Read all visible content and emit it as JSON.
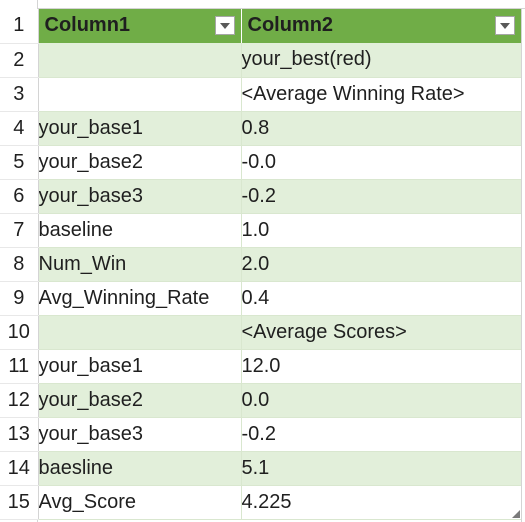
{
  "table": {
    "headers": [
      {
        "row_num": "1",
        "col1": "Column1",
        "col2": "Column2"
      }
    ],
    "rows": [
      {
        "row_num": "2",
        "col1": "",
        "col2": "your_best(red)"
      },
      {
        "row_num": "3",
        "col1": "",
        "col2": "<Average Winning Rate>"
      },
      {
        "row_num": "4",
        "col1": "your_base1",
        "col2": "0.8"
      },
      {
        "row_num": "5",
        "col1": "your_base2",
        "col2": "-0.0"
      },
      {
        "row_num": "6",
        "col1": "your_base3",
        "col2": "-0.2"
      },
      {
        "row_num": "7",
        "col1": "baseline",
        "col2": "1.0"
      },
      {
        "row_num": "8",
        "col1": "Num_Win",
        "col2": "2.0"
      },
      {
        "row_num": "9",
        "col1": "Avg_Winning_Rate",
        "col2": "0.4"
      },
      {
        "row_num": "10",
        "col1": "",
        "col2": "<Average Scores>"
      },
      {
        "row_num": "11",
        "col1": "your_base1",
        "col2": "12.0"
      },
      {
        "row_num": "12",
        "col1": "your_base2",
        "col2": "0.0"
      },
      {
        "row_num": "13",
        "col1": "your_base3",
        "col2": "-0.2"
      },
      {
        "row_num": "14",
        "col1": "baesline",
        "col2": "5.1"
      },
      {
        "row_num": "15",
        "col1": "Avg_Score",
        "col2": "4.225"
      }
    ]
  },
  "icons": {
    "filter_dropdown": "chevron-down-icon"
  },
  "colors": {
    "header_bg": "#70ad47",
    "band_bg": "#e2efda",
    "plain_bg": "#ffffff",
    "header_text": "#ffffff"
  }
}
